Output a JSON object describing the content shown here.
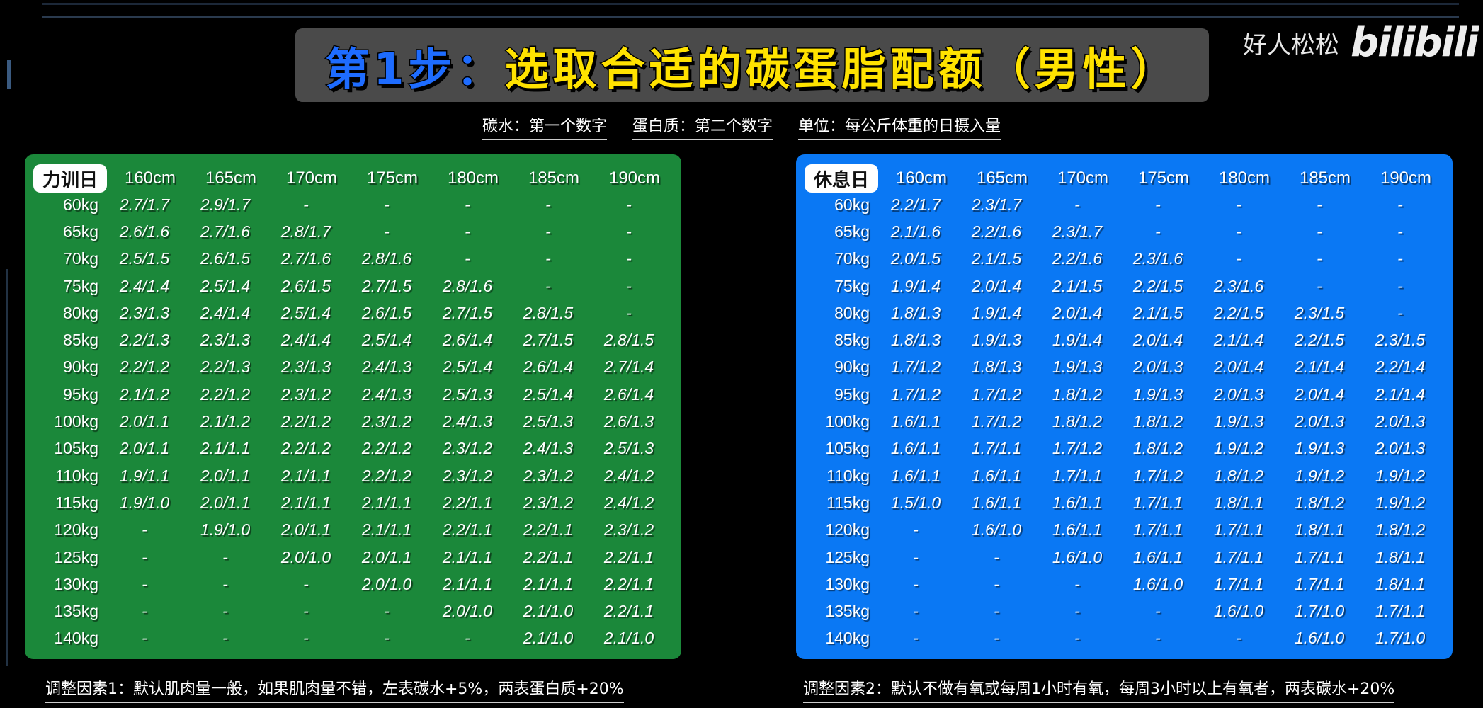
{
  "title": {
    "prefix": "第1步：",
    "main": "选取合适的碳蛋脂配额（男性）"
  },
  "watermark": {
    "author": "好人松松",
    "logo": "bilibili"
  },
  "subtitle": {
    "carb": "碳水：第一个数字",
    "protein": "蛋白质：第二个数字",
    "unit": "单位：每公斤体重的日摄入量"
  },
  "colors": {
    "training_panel": "#1b883a",
    "rest_panel": "#0a78f4",
    "title_prefix": "#1e6cff",
    "title_main": "#ffe200"
  },
  "heights": [
    "160cm",
    "165cm",
    "170cm",
    "175cm",
    "180cm",
    "185cm",
    "190cm"
  ],
  "weights": [
    "60kg",
    "65kg",
    "70kg",
    "75kg",
    "80kg",
    "85kg",
    "90kg",
    "95kg",
    "100kg",
    "105kg",
    "110kg",
    "115kg",
    "120kg",
    "125kg",
    "130kg",
    "135kg",
    "140kg"
  ],
  "training": {
    "label": "力训日",
    "rows": [
      [
        "2.7/1.7",
        "2.9/1.7",
        "-",
        "-",
        "-",
        "-",
        "-"
      ],
      [
        "2.6/1.6",
        "2.7/1.6",
        "2.8/1.7",
        "-",
        "-",
        "-",
        "-"
      ],
      [
        "2.5/1.5",
        "2.6/1.5",
        "2.7/1.6",
        "2.8/1.6",
        "-",
        "-",
        "-"
      ],
      [
        "2.4/1.4",
        "2.5/1.4",
        "2.6/1.5",
        "2.7/1.5",
        "2.8/1.6",
        "-",
        "-"
      ],
      [
        "2.3/1.3",
        "2.4/1.4",
        "2.5/1.4",
        "2.6/1.5",
        "2.7/1.5",
        "2.8/1.5",
        "-"
      ],
      [
        "2.2/1.3",
        "2.3/1.3",
        "2.4/1.4",
        "2.5/1.4",
        "2.6/1.4",
        "2.7/1.5",
        "2.8/1.5"
      ],
      [
        "2.2/1.2",
        "2.2/1.3",
        "2.3/1.3",
        "2.4/1.3",
        "2.5/1.4",
        "2.6/1.4",
        "2.7/1.4"
      ],
      [
        "2.1/1.2",
        "2.2/1.2",
        "2.3/1.2",
        "2.4/1.3",
        "2.5/1.3",
        "2.5/1.4",
        "2.6/1.4"
      ],
      [
        "2.0/1.1",
        "2.1/1.2",
        "2.2/1.2",
        "2.3/1.2",
        "2.4/1.3",
        "2.5/1.3",
        "2.6/1.3"
      ],
      [
        "2.0/1.1",
        "2.1/1.1",
        "2.2/1.2",
        "2.2/1.2",
        "2.3/1.2",
        "2.4/1.3",
        "2.5/1.3"
      ],
      [
        "1.9/1.1",
        "2.0/1.1",
        "2.1/1.1",
        "2.2/1.2",
        "2.3/1.2",
        "2.3/1.2",
        "2.4/1.2"
      ],
      [
        "1.9/1.0",
        "2.0/1.1",
        "2.1/1.1",
        "2.1/1.1",
        "2.2/1.1",
        "2.3/1.2",
        "2.4/1.2"
      ],
      [
        "-",
        "1.9/1.0",
        "2.0/1.1",
        "2.1/1.1",
        "2.2/1.1",
        "2.2/1.1",
        "2.3/1.2"
      ],
      [
        "-",
        "-",
        "2.0/1.0",
        "2.0/1.1",
        "2.1/1.1",
        "2.2/1.1",
        "2.2/1.1"
      ],
      [
        "-",
        "-",
        "-",
        "2.0/1.0",
        "2.1/1.1",
        "2.1/1.1",
        "2.2/1.1"
      ],
      [
        "-",
        "-",
        "-",
        "-",
        "2.0/1.0",
        "2.1/1.0",
        "2.2/1.1"
      ],
      [
        "-",
        "-",
        "-",
        "-",
        "-",
        "2.1/1.0",
        "2.1/1.0"
      ]
    ]
  },
  "rest": {
    "label": "休息日",
    "rows": [
      [
        "2.2/1.7",
        "2.3/1.7",
        "-",
        "-",
        "-",
        "-",
        "-"
      ],
      [
        "2.1/1.6",
        "2.2/1.6",
        "2.3/1.7",
        "-",
        "-",
        "-",
        "-"
      ],
      [
        "2.0/1.5",
        "2.1/1.5",
        "2.2/1.6",
        "2.3/1.6",
        "-",
        "-",
        "-"
      ],
      [
        "1.9/1.4",
        "2.0/1.4",
        "2.1/1.5",
        "2.2/1.5",
        "2.3/1.6",
        "-",
        "-"
      ],
      [
        "1.8/1.3",
        "1.9/1.4",
        "2.0/1.4",
        "2.1/1.5",
        "2.2/1.5",
        "2.3/1.5",
        "-"
      ],
      [
        "1.8/1.3",
        "1.9/1.3",
        "1.9/1.4",
        "2.0/1.4",
        "2.1/1.4",
        "2.2/1.5",
        "2.3/1.5"
      ],
      [
        "1.7/1.2",
        "1.8/1.3",
        "1.9/1.3",
        "2.0/1.3",
        "2.0/1.4",
        "2.1/1.4",
        "2.2/1.4"
      ],
      [
        "1.7/1.2",
        "1.7/1.2",
        "1.8/1.2",
        "1.9/1.3",
        "2.0/1.3",
        "2.0/1.4",
        "2.1/1.4"
      ],
      [
        "1.6/1.1",
        "1.7/1.2",
        "1.8/1.2",
        "1.8/1.2",
        "1.9/1.3",
        "2.0/1.3",
        "2.0/1.3"
      ],
      [
        "1.6/1.1",
        "1.7/1.1",
        "1.7/1.2",
        "1.8/1.2",
        "1.9/1.2",
        "1.9/1.3",
        "2.0/1.3"
      ],
      [
        "1.6/1.1",
        "1.6/1.1",
        "1.7/1.1",
        "1.7/1.2",
        "1.8/1.2",
        "1.9/1.2",
        "1.9/1.2"
      ],
      [
        "1.5/1.0",
        "1.6/1.1",
        "1.6/1.1",
        "1.7/1.1",
        "1.8/1.1",
        "1.8/1.2",
        "1.9/1.2"
      ],
      [
        "-",
        "1.6/1.0",
        "1.6/1.1",
        "1.7/1.1",
        "1.7/1.1",
        "1.8/1.1",
        "1.8/1.2"
      ],
      [
        "-",
        "-",
        "1.6/1.0",
        "1.6/1.1",
        "1.7/1.1",
        "1.7/1.1",
        "1.8/1.1"
      ],
      [
        "-",
        "-",
        "-",
        "1.6/1.0",
        "1.7/1.1",
        "1.7/1.1",
        "1.8/1.1"
      ],
      [
        "-",
        "-",
        "-",
        "-",
        "1.6/1.0",
        "1.7/1.0",
        "1.7/1.1"
      ],
      [
        "-",
        "-",
        "-",
        "-",
        "-",
        "1.6/1.0",
        "1.7/1.0"
      ]
    ]
  },
  "footer": {
    "factor1": "调整因素1：默认肌肉量一般，如果肌肉量不错，左表碳水+5%，两表蛋白质+20%",
    "factor2": "调整因素2：默认不做有氧或每周1小时有氧，每周3小时以上有氧者，两表碳水+20%"
  }
}
